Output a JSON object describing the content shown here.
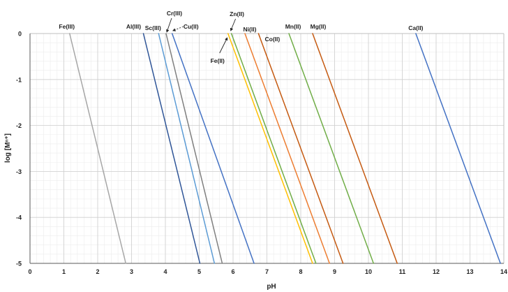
{
  "chart_data": {
    "type": "line",
    "title": "",
    "xlabel": "pH",
    "ylabel": "log [Mⁿ⁺]",
    "xlim": [
      0,
      14
    ],
    "ylim": [
      -5,
      0
    ],
    "x_ticks": [
      "0",
      "1",
      "2",
      "3",
      "4",
      "5",
      "6",
      "7",
      "8",
      "9",
      "10",
      "11",
      "12",
      "13",
      "14"
    ],
    "y_ticks": [
      "0",
      "-1",
      "-2",
      "-3",
      "-4",
      "-5"
    ],
    "grid": true,
    "legend": "none",
    "series": [
      {
        "name": "Fe(III)",
        "x": [
          1.17,
          2.83
        ],
        "y": [
          0,
          -5
        ],
        "color": "#a6a6a6"
      },
      {
        "name": "Al(III)",
        "x": [
          3.35,
          5.02
        ],
        "y": [
          0,
          -5
        ],
        "color": "#2f5597"
      },
      {
        "name": "Sc(III)",
        "x": [
          3.8,
          5.45
        ],
        "y": [
          0,
          -5
        ],
        "color": "#5b9bd5"
      },
      {
        "name": "Cr(III)",
        "x": [
          4.02,
          5.68
        ],
        "y": [
          0,
          -5
        ],
        "color": "#7f7f7f"
      },
      {
        "name": "Cu(II)",
        "x": [
          4.2,
          6.62
        ],
        "y": [
          0,
          -5
        ],
        "color": "#4472c4"
      },
      {
        "name": "Zn(II)",
        "x": [
          5.95,
          8.45
        ],
        "y": [
          0,
          -5
        ],
        "color": "#70ad47"
      },
      {
        "name": "Fe(II)",
        "x": [
          5.85,
          8.35
        ],
        "y": [
          0,
          -5
        ],
        "color": "#ffc000"
      },
      {
        "name": "Ni(II)",
        "x": [
          6.35,
          8.85
        ],
        "y": [
          0,
          -5
        ],
        "color": "#ed7d31"
      },
      {
        "name": "Co(II)",
        "x": [
          6.75,
          9.25
        ],
        "y": [
          0,
          -5
        ],
        "color": "#c55a11"
      },
      {
        "name": "Mn(II)",
        "x": [
          7.65,
          10.15
        ],
        "y": [
          0,
          -5
        ],
        "color": "#70ad47"
      },
      {
        "name": "Mg(II)",
        "x": [
          8.35,
          10.85
        ],
        "y": [
          0,
          -5
        ],
        "color": "#c55a11"
      },
      {
        "name": "Ca(II)",
        "x": [
          11.4,
          13.9
        ],
        "y": [
          0,
          -5
        ],
        "color": "#4472c4"
      }
    ]
  }
}
